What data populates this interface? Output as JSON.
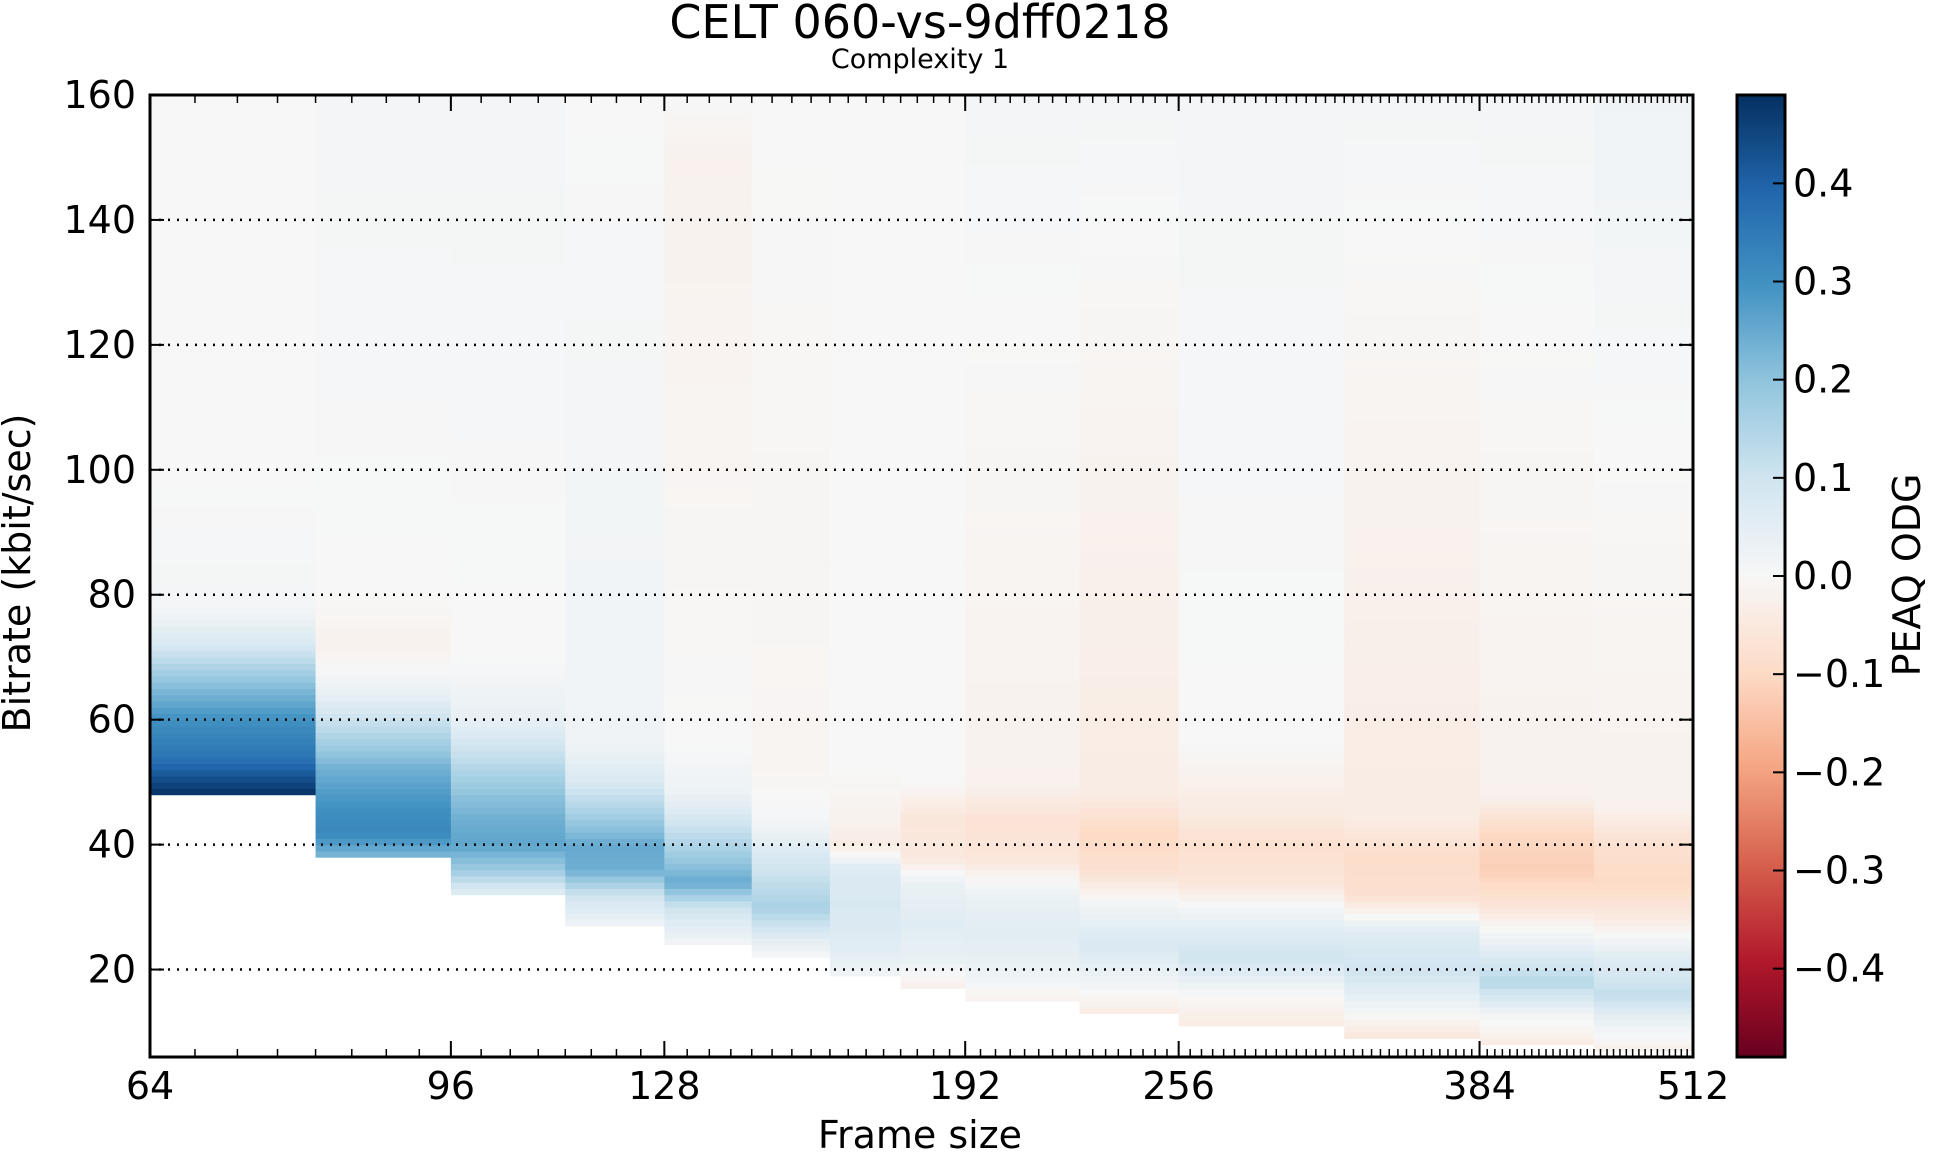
{
  "chart_data": {
    "type": "heatmap",
    "title": "CELT 060-vs-9dff0218",
    "subtitle": "Complexity 1",
    "xlabel": "Frame size",
    "ylabel": "Bitrate (kbit/sec)",
    "x_scale": "log2",
    "x_ticks": [
      "64",
      "96",
      "128",
      "192",
      "256",
      "384",
      "512"
    ],
    "x_tick_values": [
      64,
      96,
      128,
      192,
      256,
      384,
      512
    ],
    "xlim": [
      64,
      512
    ],
    "y_ticks": [
      "20",
      "40",
      "60",
      "80",
      "100",
      "120",
      "140",
      "160"
    ],
    "y_tick_values": [
      20,
      40,
      60,
      80,
      100,
      120,
      140,
      160
    ],
    "ylim": [
      6,
      160
    ],
    "grid": "horizontal dotted",
    "colorbar": {
      "label": "PEAQ ODG",
      "ticks": [
        "0.4",
        "0.3",
        "0.2",
        "0.1",
        "0.0",
        "−0.1",
        "−0.2",
        "−0.3",
        "−0.4"
      ],
      "tick_values": [
        0.4,
        0.3,
        0.2,
        0.1,
        0.0,
        -0.1,
        -0.2,
        -0.3,
        -0.4
      ],
      "range": [
        -0.49,
        0.49
      ],
      "colormap": "RdBu"
    },
    "columns": [
      {
        "frame_start": 64,
        "frame_end": 80,
        "min_bitrate": 48,
        "profile": [
          [
            48,
            0.49
          ],
          [
            54,
            0.36
          ],
          [
            60,
            0.3
          ],
          [
            66,
            0.2
          ],
          [
            72,
            0.08
          ],
          [
            78,
            0.01
          ],
          [
            100,
            0.0
          ],
          [
            160,
            0.0
          ]
        ]
      },
      {
        "frame_start": 80,
        "frame_end": 96,
        "min_bitrate": 38,
        "profile": [
          [
            38,
            0.22
          ],
          [
            42,
            0.32
          ],
          [
            46,
            0.3
          ],
          [
            52,
            0.24
          ],
          [
            58,
            0.14
          ],
          [
            64,
            0.04
          ],
          [
            68,
            0.0
          ],
          [
            72,
            -0.02
          ],
          [
            80,
            0.0
          ],
          [
            160,
            0.01
          ]
        ]
      },
      {
        "frame_start": 96,
        "frame_end": 112,
        "min_bitrate": 32,
        "profile": [
          [
            32,
            0.05
          ],
          [
            36,
            0.18
          ],
          [
            40,
            0.26
          ],
          [
            44,
            0.24
          ],
          [
            48,
            0.2
          ],
          [
            54,
            0.12
          ],
          [
            60,
            0.04
          ],
          [
            70,
            0.0
          ],
          [
            160,
            0.01
          ]
        ]
      },
      {
        "frame_start": 112,
        "frame_end": 128,
        "min_bitrate": 27,
        "profile": [
          [
            27,
            0.02
          ],
          [
            32,
            0.1
          ],
          [
            36,
            0.24
          ],
          [
            40,
            0.25
          ],
          [
            44,
            0.18
          ],
          [
            50,
            0.08
          ],
          [
            56,
            0.02
          ],
          [
            160,
            0.0
          ]
        ]
      },
      {
        "frame_start": 128,
        "frame_end": 144,
        "min_bitrate": 24,
        "profile": [
          [
            24,
            0.01
          ],
          [
            30,
            0.1
          ],
          [
            34,
            0.25
          ],
          [
            38,
            0.18
          ],
          [
            42,
            0.12
          ],
          [
            48,
            0.03
          ],
          [
            56,
            0.0
          ],
          [
            150,
            -0.02
          ],
          [
            160,
            0.0
          ]
        ]
      },
      {
        "frame_start": 144,
        "frame_end": 160,
        "min_bitrate": 22,
        "profile": [
          [
            22,
            0.0
          ],
          [
            26,
            0.08
          ],
          [
            30,
            0.16
          ],
          [
            34,
            0.12
          ],
          [
            38,
            0.08
          ],
          [
            44,
            0.01
          ],
          [
            52,
            -0.01
          ],
          [
            160,
            0.0
          ]
        ]
      },
      {
        "frame_start": 160,
        "frame_end": 176,
        "min_bitrate": 19,
        "profile": [
          [
            19,
            0.02
          ],
          [
            24,
            0.06
          ],
          [
            30,
            0.08
          ],
          [
            36,
            0.07
          ],
          [
            40,
            -0.04
          ],
          [
            44,
            -0.02
          ],
          [
            52,
            0.0
          ],
          [
            160,
            0.0
          ]
        ]
      },
      {
        "frame_start": 176,
        "frame_end": 192,
        "min_bitrate": 17,
        "profile": [
          [
            17,
            -0.03
          ],
          [
            22,
            0.04
          ],
          [
            28,
            0.06
          ],
          [
            34,
            0.03
          ],
          [
            38,
            -0.05
          ],
          [
            44,
            -0.06
          ],
          [
            50,
            0.0
          ],
          [
            160,
            0.0
          ]
        ]
      },
      {
        "frame_start": 192,
        "frame_end": 224,
        "min_bitrate": 15,
        "profile": [
          [
            15,
            -0.02
          ],
          [
            20,
            0.03
          ],
          [
            26,
            0.06
          ],
          [
            32,
            0.03
          ],
          [
            38,
            -0.06
          ],
          [
            44,
            -0.07
          ],
          [
            50,
            -0.02
          ],
          [
            160,
            0.01
          ]
        ]
      },
      {
        "frame_start": 224,
        "frame_end": 256,
        "min_bitrate": 13,
        "profile": [
          [
            13,
            -0.04
          ],
          [
            18,
            0.02
          ],
          [
            24,
            0.08
          ],
          [
            30,
            0.02
          ],
          [
            36,
            -0.08
          ],
          [
            42,
            -0.1
          ],
          [
            48,
            -0.04
          ],
          [
            160,
            0.01
          ]
        ]
      },
      {
        "frame_start": 256,
        "frame_end": 320,
        "min_bitrate": 11,
        "profile": [
          [
            11,
            -0.04
          ],
          [
            16,
            0.0
          ],
          [
            22,
            0.1
          ],
          [
            28,
            0.04
          ],
          [
            34,
            -0.06
          ],
          [
            40,
            -0.08
          ],
          [
            46,
            -0.04
          ],
          [
            56,
            0.0
          ],
          [
            160,
            0.01
          ]
        ]
      },
      {
        "frame_start": 320,
        "frame_end": 384,
        "min_bitrate": 9,
        "profile": [
          [
            9,
            -0.06
          ],
          [
            14,
            0.02
          ],
          [
            20,
            0.1
          ],
          [
            26,
            0.06
          ],
          [
            32,
            -0.08
          ],
          [
            38,
            -0.09
          ],
          [
            44,
            -0.04
          ],
          [
            160,
            0.01
          ]
        ]
      },
      {
        "frame_start": 384,
        "frame_end": 448,
        "min_bitrate": 8,
        "profile": [
          [
            8,
            -0.04
          ],
          [
            13,
            0.02
          ],
          [
            18,
            0.14
          ],
          [
            24,
            0.04
          ],
          [
            30,
            -0.06
          ],
          [
            36,
            -0.12
          ],
          [
            42,
            -0.1
          ],
          [
            48,
            -0.02
          ],
          [
            160,
            0.01
          ]
        ]
      },
      {
        "frame_start": 448,
        "frame_end": 512,
        "min_bitrate": 7,
        "profile": [
          [
            7,
            -0.03
          ],
          [
            12,
            0.04
          ],
          [
            16,
            0.12
          ],
          [
            22,
            0.06
          ],
          [
            28,
            -0.04
          ],
          [
            34,
            -0.1
          ],
          [
            40,
            -0.08
          ],
          [
            46,
            -0.02
          ],
          [
            160,
            0.02
          ]
        ]
      }
    ]
  }
}
